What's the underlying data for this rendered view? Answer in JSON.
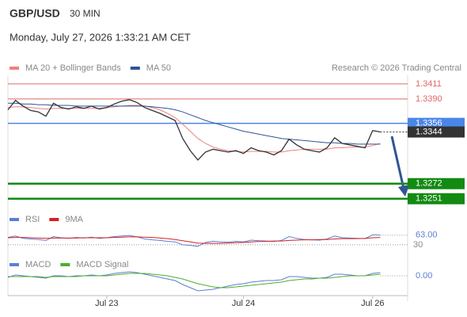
{
  "header": {
    "symbol": "GBP/USD",
    "timeframe": "30 MIN",
    "datetime": "Monday, July 27, 2026 1:33:21 AM CET"
  },
  "credit": "Research © 2026 Trading Central",
  "chart_data": [
    {
      "type": "line",
      "categories": [
        null,
        null,
        null,
        null,
        null,
        null,
        null,
        null,
        null,
        null,
        null,
        null,
        null,
        "Jul 23",
        null,
        null,
        null,
        null,
        null,
        null,
        null,
        null,
        null,
        null,
        null,
        null,
        null,
        null,
        null,
        null,
        null,
        "Jul 24",
        null,
        null,
        null,
        null,
        null,
        null,
        null,
        null,
        null,
        null,
        null,
        null,
        null,
        null,
        null,
        null,
        "Jul 26",
        null
      ],
      "values": [
        1.3375,
        1.3388,
        1.338,
        1.3374,
        1.3372,
        1.3366,
        1.3384,
        1.3378,
        1.3376,
        1.3379,
        1.3377,
        1.338,
        1.3376,
        1.3378,
        1.3383,
        1.3387,
        1.3389,
        1.3385,
        1.3378,
        1.3374,
        1.337,
        1.3365,
        1.336,
        1.3335,
        1.3318,
        1.3305,
        1.3316,
        1.332,
        1.3318,
        1.3316,
        1.3318,
        1.3314,
        1.3322,
        1.3318,
        1.3316,
        1.3312,
        1.3318,
        1.3334,
        1.3326,
        1.332,
        1.3318,
        1.3316,
        1.3322,
        1.3336,
        1.3328,
        1.3326,
        1.3324,
        1.3322,
        1.3346,
        1.3344
      ],
      "color": "#333333",
      "series": [
        {
          "name": "MA 20 + Bollinger Bands",
          "color": "#f08080",
          "values": [
            1.3378,
            1.3379,
            1.3379,
            1.3378,
            1.3377,
            1.3376,
            1.3377,
            1.3377,
            1.3377,
            1.3377,
            1.3377,
            1.3377,
            1.3377,
            1.3378,
            1.3379,
            1.338,
            1.3381,
            1.3381,
            1.338,
            1.3378,
            1.3375,
            1.337,
            1.3364,
            1.3355,
            1.3345,
            1.3335,
            1.3328,
            1.3323,
            1.332,
            1.3318,
            1.3317,
            1.3316,
            1.3317,
            1.3317,
            1.3317,
            1.3316,
            1.3316,
            1.3318,
            1.3319,
            1.332,
            1.332,
            1.332,
            1.332,
            1.3322,
            1.3322,
            1.3323,
            1.3323,
            1.3323,
            1.3325,
            1.3328
          ]
        },
        {
          "name": "MA 50",
          "color": "#2f5597",
          "values": [
            1.3384,
            1.3384,
            1.3383,
            1.3383,
            1.3382,
            1.3382,
            1.3381,
            1.3381,
            1.3381,
            1.338,
            1.338,
            1.338,
            1.338,
            1.338,
            1.338,
            1.338,
            1.338,
            1.338,
            1.338,
            1.3379,
            1.3378,
            1.3377,
            1.3375,
            1.3372,
            1.3368,
            1.3364,
            1.336,
            1.3357,
            1.3354,
            1.3351,
            1.3348,
            1.3345,
            1.3343,
            1.3341,
            1.3339,
            1.3337,
            1.3335,
            1.3334,
            1.3333,
            1.3332,
            1.3331,
            1.333,
            1.3329,
            1.3329,
            1.3328,
            1.3328,
            1.3327,
            1.3327,
            1.3327,
            1.3327
          ]
        }
      ],
      "ylim": [
        1.3243,
        1.3423
      ],
      "resistance": [
        1.3411,
        {
          "value": 1.339,
          "label": "1.3390"
        }
      ],
      "resistance_color": "#e06666",
      "pivot": 1.3356,
      "pivot_color": "#4a86e8",
      "last": 1.3344,
      "last_color": "#333333",
      "support": [
        1.3272,
        1.3251
      ],
      "support_color": "#138a13"
    },
    {
      "type": "line",
      "series": [
        {
          "name": "RSI",
          "color": "#5b7fd6",
          "values": [
            55,
            60,
            52,
            50,
            48,
            45,
            58,
            54,
            52,
            55,
            53,
            56,
            52,
            54,
            58,
            60,
            62,
            57,
            50,
            47,
            45,
            42,
            40,
            30,
            28,
            25,
            38,
            42,
            40,
            39,
            42,
            40,
            46,
            44,
            43,
            41,
            45,
            58,
            52,
            48,
            47,
            46,
            50,
            60,
            54,
            53,
            52,
            51,
            64,
            63
          ]
        },
        {
          "name": "9MA",
          "color": "#d62020",
          "values": [
            54,
            55,
            55,
            54,
            53,
            52,
            53,
            53,
            53,
            53,
            54,
            54,
            54,
            54,
            55,
            56,
            57,
            57,
            56,
            55,
            53,
            51,
            48,
            44,
            40,
            36,
            35,
            35,
            35,
            36,
            37,
            38,
            40,
            41,
            42,
            43,
            43,
            45,
            46,
            47,
            47,
            48,
            48,
            50,
            51,
            51,
            51,
            52,
            54,
            55
          ]
        }
      ],
      "ylim": [
        0,
        100
      ],
      "yticks": [
        30
      ],
      "last": {
        "value": 63,
        "label": "63.00"
      }
    },
    {
      "type": "line",
      "series": [
        {
          "name": "MACD",
          "color": "#5b7fd6",
          "values": [
            -0.0002,
            0.0001,
            0,
            -0.0001,
            -0.0002,
            -0.0003,
            0,
            0,
            -0.0001,
            0,
            0,
            0.0001,
            0,
            0.0001,
            0.0003,
            0.0004,
            0.0005,
            0.0004,
            0.0002,
            0,
            -0.0002,
            -0.0004,
            -0.0006,
            -0.0011,
            -0.0015,
            -0.0019,
            -0.0018,
            -0.0017,
            -0.0015,
            -0.0013,
            -0.0011,
            -0.001,
            -0.0008,
            -0.0007,
            -0.0006,
            -0.0006,
            -0.0005,
            -0.0001,
            -0.0001,
            -0.0002,
            -0.0003,
            -0.0003,
            -0.0002,
            0.0002,
            0.0002,
            0.0001,
            0,
            0,
            0.0003,
            0.0004
          ]
        },
        {
          "name": "MACD Signal",
          "color": "#4caf2a",
          "values": [
            -0.0001,
            -0.0001,
            -0.0001,
            -0.0001,
            -0.0001,
            -0.0002,
            -0.0001,
            -0.0001,
            -0.0001,
            -0.0001,
            0,
            0,
            0,
            0,
            0.0001,
            0.0002,
            0.0003,
            0.0003,
            0.0003,
            0.0002,
            0.0001,
            0,
            -0.0002,
            -0.0004,
            -0.0007,
            -0.001,
            -0.0012,
            -0.0014,
            -0.0015,
            -0.0015,
            -0.0014,
            -0.0013,
            -0.0012,
            -0.0011,
            -0.001,
            -0.0009,
            -0.0008,
            -0.0006,
            -0.0005,
            -0.0004,
            -0.0004,
            -0.0003,
            -0.0003,
            -0.0002,
            -0.0001,
            0,
            0,
            0,
            0.0001,
            0.0002
          ]
        }
      ],
      "ylim": [
        -0.0024,
        0.0018
      ],
      "last": {
        "value": 0,
        "label": "0.00"
      }
    }
  ]
}
